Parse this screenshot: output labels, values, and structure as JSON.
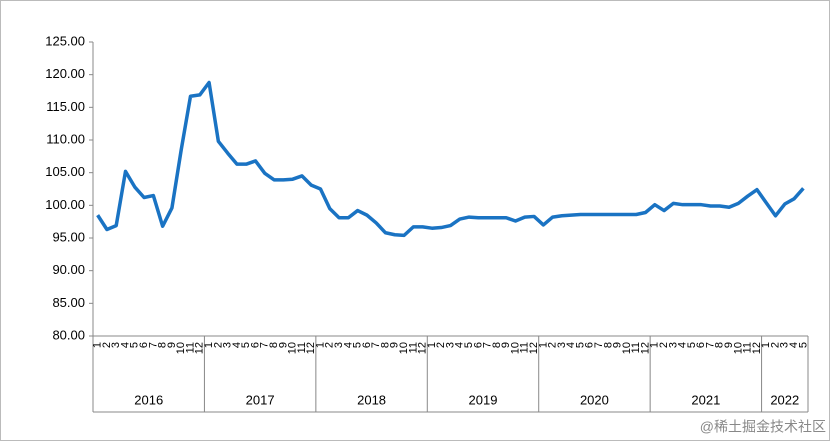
{
  "chart_data": {
    "type": "line",
    "ylim": [
      80,
      125
    ],
    "yticks": [
      {
        "value": 80,
        "label": "80.00"
      },
      {
        "value": 85,
        "label": "85.00"
      },
      {
        "value": 90,
        "label": "90.00"
      },
      {
        "value": 95,
        "label": "95.00"
      },
      {
        "value": 100,
        "label": "100.00"
      },
      {
        "value": 105,
        "label": "105.00"
      },
      {
        "value": 110,
        "label": "110.00"
      },
      {
        "value": 115,
        "label": "115.00"
      },
      {
        "value": 120,
        "label": "120.00"
      },
      {
        "value": 125,
        "label": "125.00"
      }
    ],
    "groups": [
      {
        "label": "2016",
        "categories": [
          "1",
          "2",
          "3",
          "4",
          "5",
          "6",
          "7",
          "8",
          "9",
          "10",
          "11",
          "12"
        ]
      },
      {
        "label": "2017",
        "categories": [
          "1",
          "2",
          "3",
          "4",
          "5",
          "6",
          "7",
          "8",
          "9",
          "10",
          "11",
          "12"
        ]
      },
      {
        "label": "2018",
        "categories": [
          "1",
          "2",
          "3",
          "4",
          "5",
          "6",
          "7",
          "8",
          "9",
          "10",
          "11",
          "12"
        ]
      },
      {
        "label": "2019",
        "categories": [
          "1",
          "2",
          "3",
          "4",
          "5",
          "6",
          "7",
          "8",
          "9",
          "10",
          "11",
          "12"
        ]
      },
      {
        "label": "2020",
        "categories": [
          "1",
          "2",
          "3",
          "4",
          "5",
          "6",
          "7",
          "8",
          "9",
          "10",
          "11",
          "12"
        ]
      },
      {
        "label": "2021",
        "categories": [
          "1",
          "2",
          "3",
          "4",
          "5",
          "6",
          "7",
          "8",
          "9",
          "10",
          "11",
          "12"
        ]
      },
      {
        "label": "2022",
        "categories": [
          "1",
          "2",
          "3",
          "4",
          "5"
        ]
      }
    ],
    "series": [
      {
        "color": "#1a73c3",
        "values": [
          98.5,
          96.3,
          96.9,
          105.2,
          102.8,
          101.2,
          101.5,
          96.8,
          99.6,
          108.5,
          116.7,
          116.9,
          118.8,
          109.8,
          108.0,
          106.3,
          106.3,
          106.8,
          104.9,
          103.9,
          103.9,
          104.0,
          104.5,
          103.1,
          102.5,
          99.5,
          98.1,
          98.1,
          99.2,
          98.5,
          97.3,
          95.8,
          95.5,
          95.4,
          96.7,
          96.7,
          96.5,
          96.6,
          96.9,
          97.9,
          98.2,
          98.1,
          98.1,
          98.1,
          98.1,
          97.6,
          98.2,
          98.3,
          97.0,
          98.2,
          98.4,
          98.5,
          98.6,
          98.6,
          98.6,
          98.6,
          98.6,
          98.6,
          98.6,
          98.9,
          100.1,
          99.2,
          100.3,
          100.1,
          100.1,
          100.1,
          99.9,
          99.9,
          99.7,
          100.3,
          101.4,
          102.4,
          100.4,
          98.4,
          100.2,
          101.0,
          102.6
        ]
      }
    ]
  },
  "watermark": "@稀土掘金技术社区"
}
